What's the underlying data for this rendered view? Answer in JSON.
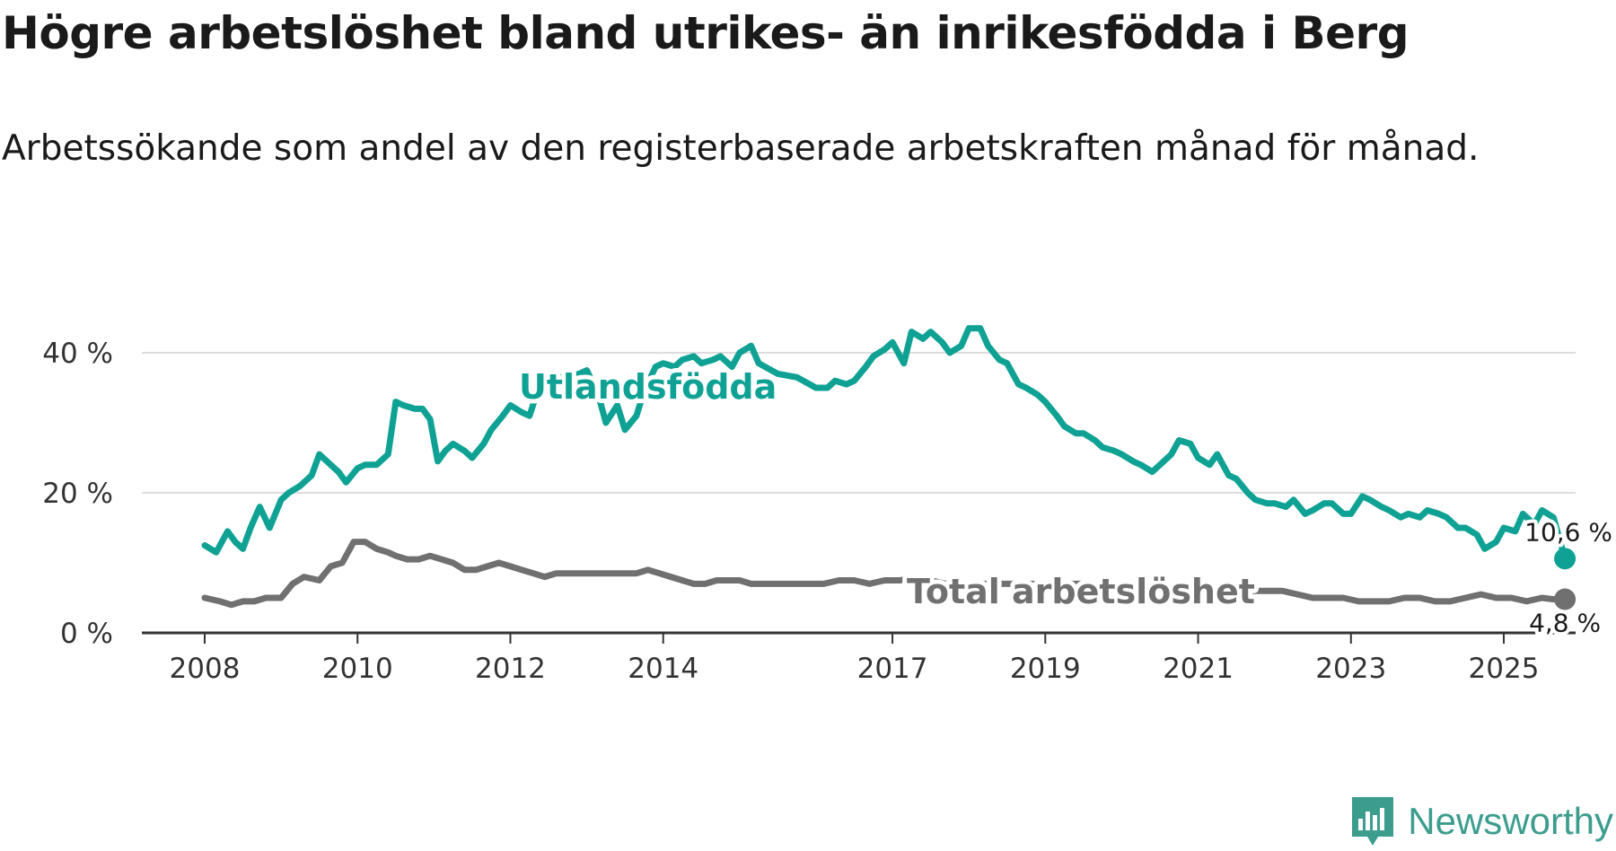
{
  "title": "Högre arbetslöshet bland utrikes- än inrikesfödda i Berg",
  "subtitle": "Arbetssökande som andel av den registerbaserade arbetskraften månad för månad.",
  "brand": {
    "name": "Newsworthy",
    "icon": "newsworthy-logo-icon"
  },
  "colors": {
    "foreign": "#0fa294",
    "total": "#707070",
    "grid": "#dddddd",
    "axis": "#333333"
  },
  "chart_data": {
    "type": "line",
    "title": "Högre arbetslöshet bland utrikes- än inrikesfödda i Berg",
    "subtitle": "Arbetssökande som andel av den registerbaserade arbetskraften månad för månad.",
    "xlabel": "",
    "ylabel": "",
    "x_range": [
      2008,
      2026.2
    ],
    "ylim": [
      0,
      40
    ],
    "y_ticks": [
      {
        "value": 0,
        "label": "0 %"
      },
      {
        "value": 20,
        "label": "20 %"
      },
      {
        "value": 40,
        "label": "40 %"
      }
    ],
    "x_ticks": [
      {
        "value": 2008,
        "label": "2008"
      },
      {
        "value": 2010,
        "label": "2010"
      },
      {
        "value": 2012,
        "label": "2012"
      },
      {
        "value": 2014,
        "label": "2014"
      },
      {
        "value": 2017,
        "label": "2017"
      },
      {
        "value": 2019,
        "label": "2019"
      },
      {
        "value": 2021,
        "label": "2021"
      },
      {
        "value": 2023,
        "label": "2023"
      },
      {
        "value": 2025,
        "label": "2025"
      }
    ],
    "grid": true,
    "series": [
      {
        "name": "Utlandsfödda",
        "end_label": "10,6 %",
        "x": [
          2008.0,
          2008.15,
          2008.3,
          2008.4,
          2008.5,
          2008.6,
          2008.72,
          2008.85,
          2009.0,
          2009.1,
          2009.25,
          2009.4,
          2009.5,
          2009.65,
          2009.75,
          2009.85,
          2010.0,
          2010.1,
          2010.25,
          2010.4,
          2010.5,
          2010.6,
          2010.75,
          2010.85,
          2010.95,
          2011.05,
          2011.15,
          2011.25,
          2011.4,
          2011.5,
          2011.65,
          2011.75,
          2011.9,
          2012.0,
          2012.15,
          2012.25,
          2012.4,
          2012.5,
          2012.65,
          2012.75,
          2012.9,
          2013.0,
          2013.15,
          2013.25,
          2013.4,
          2013.5,
          2013.65,
          2013.75,
          2013.9,
          2014.0,
          2014.15,
          2014.25,
          2014.4,
          2014.5,
          2014.65,
          2014.75,
          2014.9,
          2015.0,
          2015.15,
          2015.25,
          2015.5,
          2015.75,
          2016.0,
          2016.15,
          2016.25,
          2016.4,
          2016.5,
          2016.65,
          2016.75,
          2016.9,
          2017.0,
          2017.15,
          2017.25,
          2017.4,
          2017.5,
          2017.65,
          2017.75,
          2017.9,
          2018.0,
          2018.15,
          2018.25,
          2018.4,
          2018.5,
          2018.65,
          2018.75,
          2018.9,
          2019.0,
          2019.15,
          2019.25,
          2019.4,
          2019.5,
          2019.65,
          2019.75,
          2019.9,
          2020.0,
          2020.15,
          2020.25,
          2020.4,
          2020.5,
          2020.65,
          2020.75,
          2020.9,
          2021.0,
          2021.15,
          2021.25,
          2021.4,
          2021.5,
          2021.65,
          2021.75,
          2021.9,
          2022.0,
          2022.15,
          2022.25,
          2022.4,
          2022.5,
          2022.65,
          2022.75,
          2022.9,
          2023.0,
          2023.15,
          2023.25,
          2023.4,
          2023.5,
          2023.65,
          2023.75,
          2023.9,
          2024.0,
          2024.15,
          2024.25,
          2024.4,
          2024.5,
          2024.65,
          2024.75,
          2024.9,
          2025.0,
          2025.15,
          2025.25,
          2025.4,
          2025.5,
          2025.65,
          2025.8
        ],
        "values": [
          12.5,
          11.5,
          14.5,
          13,
          12,
          15,
          18,
          15,
          19,
          20,
          21,
          22.5,
          25.5,
          24,
          23,
          21.5,
          23.5,
          24,
          24,
          25.5,
          33,
          32.5,
          32,
          32,
          30.5,
          24.5,
          26,
          27,
          26,
          25,
          27,
          29,
          31,
          32.5,
          31.5,
          31,
          36,
          35.5,
          36.5,
          36.5,
          37,
          37.5,
          34,
          30,
          32.5,
          29,
          31,
          34.5,
          38,
          38.5,
          38,
          39,
          39.5,
          38.5,
          39,
          39.5,
          38,
          40,
          41,
          38.5,
          37,
          36.5,
          35,
          35,
          36,
          35.5,
          36,
          38,
          39.5,
          40.5,
          41.5,
          38.5,
          43,
          42,
          43,
          41.5,
          40,
          41,
          43.5,
          43.5,
          41,
          39,
          38.5,
          35.5,
          35,
          34,
          33,
          31,
          29.5,
          28.5,
          28.5,
          27.5,
          26.5,
          26,
          25.5,
          24.5,
          24,
          23,
          24,
          25.5,
          27.5,
          27,
          25,
          24,
          25.5,
          22.5,
          22,
          20,
          19,
          18.5,
          18.5,
          18,
          19,
          17,
          17.5,
          18.5,
          18.5,
          17,
          17,
          19.5,
          19,
          18,
          17.5,
          16.5,
          17,
          16.5,
          17.5,
          17,
          16.5,
          15,
          15,
          14,
          12,
          13,
          15,
          14.5,
          17,
          15.5,
          17.5,
          16.5,
          10.6
        ]
      },
      {
        "name": "Total arbetslöshet",
        "end_label": "4,8 %",
        "x": [
          2008.0,
          2008.2,
          2008.35,
          2008.5,
          2008.65,
          2008.8,
          2009.0,
          2009.15,
          2009.3,
          2009.5,
          2009.65,
          2009.8,
          2009.95,
          2010.1,
          2010.25,
          2010.4,
          2010.5,
          2010.65,
          2010.8,
          2010.95,
          2011.1,
          2011.25,
          2011.4,
          2011.55,
          2011.7,
          2011.85,
          2012.0,
          2012.15,
          2012.3,
          2012.45,
          2012.6,
          2012.75,
          2012.9,
          2013.05,
          2013.2,
          2013.35,
          2013.5,
          2013.65,
          2013.8,
          2013.95,
          2014.1,
          2014.25,
          2014.4,
          2014.55,
          2014.7,
          2014.85,
          2015.0,
          2015.15,
          2015.3,
          2015.5,
          2015.7,
          2015.9,
          2016.1,
          2016.3,
          2016.5,
          2016.7,
          2016.9,
          2017.1,
          2017.3,
          2017.5,
          2017.7,
          2017.9,
          2018.1,
          2018.3,
          2018.5,
          2018.7,
          2018.9,
          2019.1,
          2019.3,
          2019.5,
          2019.7,
          2019.9,
          2020.1,
          2020.3,
          2020.5,
          2020.7,
          2020.9,
          2021.1,
          2021.3,
          2021.5,
          2021.7,
          2021.9,
          2022.1,
          2022.3,
          2022.5,
          2022.7,
          2022.9,
          2023.1,
          2023.3,
          2023.5,
          2023.7,
          2023.9,
          2024.1,
          2024.3,
          2024.5,
          2024.7,
          2024.9,
          2025.1,
          2025.3,
          2025.5,
          2025.65,
          2025.8
        ],
        "values": [
          5,
          4.5,
          4,
          4.5,
          4.5,
          5,
          5,
          7,
          8,
          7.5,
          9.5,
          10,
          13,
          13,
          12,
          11.5,
          11,
          10.5,
          10.5,
          11,
          10.5,
          10,
          9,
          9,
          9.5,
          10,
          9.5,
          9,
          8.5,
          8,
          8.5,
          8.5,
          8.5,
          8.5,
          8.5,
          8.5,
          8.5,
          8.5,
          9,
          8.5,
          8,
          7.5,
          7,
          7,
          7.5,
          7.5,
          7.5,
          7,
          7,
          7,
          7,
          7,
          7,
          7.5,
          7.5,
          7,
          7.5,
          7.5,
          8,
          7.5,
          7,
          7,
          7,
          7,
          7,
          7,
          7,
          7,
          7,
          7,
          6.5,
          6.5,
          6.5,
          6.5,
          6.5,
          6.5,
          6.5,
          6.5,
          6,
          6,
          6,
          6,
          6,
          5.5,
          5,
          5,
          5,
          4.5,
          4.5,
          4.5,
          5,
          5,
          4.5,
          4.5,
          5,
          5.5,
          5,
          5,
          4.5,
          5,
          4.8,
          4.8
        ]
      }
    ]
  }
}
